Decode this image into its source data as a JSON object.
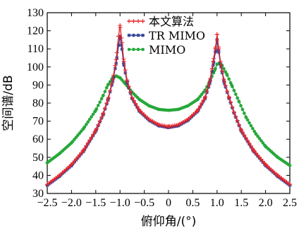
{
  "chart_data": {
    "type": "line",
    "xlabel": "俯仰角/(°)",
    "ylabel": "空间谱/dB",
    "xlim": [
      -2.5,
      2.5
    ],
    "ylim": [
      30,
      130
    ],
    "xticks": [
      -2.5,
      -2.0,
      -1.5,
      -1.0,
      -0.5,
      0,
      0.5,
      1.0,
      1.5,
      2.0,
      2.5
    ],
    "xtick_labels": [
      "−2.5",
      "−2.0",
      "−1.5",
      "−1.0",
      "−0.5",
      "0",
      "0.5",
      "1.0",
      "1.5",
      "2.0",
      "2.5"
    ],
    "yticks": [
      30,
      40,
      50,
      60,
      70,
      80,
      90,
      100,
      110,
      120,
      130
    ],
    "ytick_labels": [
      "30",
      "40",
      "50",
      "60",
      "70",
      "80",
      "90",
      "100",
      "110",
      "120",
      "130"
    ],
    "grid": false,
    "legend_position": "top-center",
    "series": [
      {
        "name": "本文算法",
        "color": "#e8262b",
        "marker": "plus",
        "x": [
          -2.5,
          -2.25,
          -2.0,
          -1.75,
          -1.5,
          -1.35,
          -1.25,
          -1.15,
          -1.08,
          -1.03,
          -1.0,
          -0.97,
          -0.92,
          -0.85,
          -0.75,
          -0.6,
          -0.4,
          -0.2,
          0,
          0.2,
          0.4,
          0.6,
          0.75,
          0.85,
          0.92,
          0.97,
          1.0,
          1.03,
          1.08,
          1.15,
          1.25,
          1.35,
          1.5,
          1.75,
          2.0,
          2.25,
          2.5
        ],
        "y": [
          35,
          40,
          46,
          54,
          65,
          74,
          82,
          93,
          104,
          117,
          123,
          116,
          103,
          92,
          83,
          76,
          71,
          68,
          67,
          68,
          71,
          76,
          83,
          92,
          103,
          111,
          118,
          111,
          101,
          92,
          83,
          75,
          65,
          54,
          46,
          40,
          35
        ]
      },
      {
        "name": "TR MIMO",
        "color": "#2b3a8f",
        "marker": "star",
        "x": [
          -2.5,
          -2.25,
          -2.0,
          -1.75,
          -1.5,
          -1.35,
          -1.25,
          -1.15,
          -1.08,
          -1.03,
          -1.0,
          -0.97,
          -0.92,
          -0.85,
          -0.75,
          -0.6,
          -0.4,
          -0.2,
          0,
          0.2,
          0.4,
          0.6,
          0.75,
          0.85,
          0.92,
          0.97,
          1.0,
          1.03,
          1.08,
          1.15,
          1.25,
          1.35,
          1.5,
          1.75,
          2.0,
          2.25,
          2.5
        ],
        "y": [
          34.5,
          39.5,
          45.5,
          53.5,
          64.5,
          73.5,
          81.5,
          92,
          102,
          112,
          117,
          112,
          101,
          91,
          82.5,
          75.5,
          70.5,
          67.5,
          66.5,
          67.5,
          70.5,
          75.5,
          82.5,
          91,
          101,
          109,
          115,
          109,
          100,
          91,
          82.5,
          74.5,
          64.5,
          53.5,
          45.5,
          39.5,
          34.5
        ]
      },
      {
        "name": "MIMO",
        "color": "#25a83a",
        "marker": "dot",
        "x": [
          -2.5,
          -2.25,
          -2.0,
          -1.75,
          -1.5,
          -1.35,
          -1.25,
          -1.15,
          -1.08,
          -1.0,
          -0.9,
          -0.75,
          -0.6,
          -0.4,
          -0.2,
          0,
          0.2,
          0.4,
          0.6,
          0.75,
          0.85,
          0.95,
          1.0,
          1.05,
          1.1,
          1.2,
          1.3,
          1.45,
          1.6,
          1.8,
          2.0,
          2.25,
          2.5
        ],
        "y": [
          47,
          52,
          58,
          66,
          76,
          84,
          90,
          94,
          95,
          94,
          91,
          86,
          82,
          78.5,
          76.5,
          76,
          76.5,
          78.5,
          82,
          87,
          92,
          98,
          101.5,
          102,
          101,
          96,
          90,
          81,
          72,
          63,
          56,
          50,
          45.5
        ]
      }
    ]
  }
}
